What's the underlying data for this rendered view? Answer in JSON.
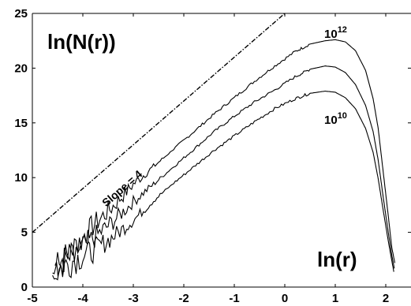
{
  "chart_data": {
    "type": "line",
    "title": "",
    "xlabel": "ln(r)",
    "ylabel": "ln(N(r))",
    "xlim": [
      -5,
      2.5
    ],
    "ylim": [
      0,
      25
    ],
    "x_ticks": [
      -5,
      -4,
      -3,
      -2,
      -1,
      0,
      1,
      2
    ],
    "y_ticks": [
      0,
      5,
      10,
      15,
      20,
      25
    ],
    "grid": false,
    "reference_line": {
      "label": "Slope = 4",
      "style": "dash-dot",
      "points": [
        [
          -5,
          5
        ],
        [
          0,
          25
        ]
      ]
    },
    "series": [
      {
        "name": "10^12",
        "label_base": "10",
        "label_exp": "12",
        "x": [
          -4.55,
          -4.2,
          -3.8,
          -3.4,
          -3.0,
          -2.6,
          -2.2,
          -1.8,
          -1.4,
          -1.0,
          -0.6,
          -0.2,
          0.2,
          0.5,
          0.8,
          1.0,
          1.2,
          1.4,
          1.6,
          1.75,
          1.85,
          1.95,
          2.05,
          2.12,
          2.18
        ],
        "y": [
          2.0,
          3.3,
          5.6,
          7.4,
          9.4,
          11.0,
          12.6,
          14.2,
          15.8,
          17.3,
          18.8,
          20.2,
          21.5,
          22.2,
          22.5,
          22.6,
          22.4,
          21.6,
          19.8,
          17.2,
          14.5,
          10.5,
          6.5,
          3.6,
          2.2
        ]
      },
      {
        "name": "",
        "x": [
          -4.6,
          -4.2,
          -3.8,
          -3.4,
          -3.0,
          -2.6,
          -2.2,
          -1.8,
          -1.4,
          -1.0,
          -0.6,
          -0.2,
          0.2,
          0.5,
          0.8,
          1.0,
          1.2,
          1.4,
          1.6,
          1.75,
          1.85,
          1.95,
          2.05,
          2.12,
          2.17
        ],
        "y": [
          1.5,
          3.0,
          4.4,
          6.0,
          7.8,
          9.4,
          11.0,
          12.6,
          14.2,
          15.6,
          16.9,
          18.0,
          19.2,
          19.9,
          20.2,
          20.1,
          19.6,
          18.5,
          16.6,
          14.2,
          11.6,
          8.2,
          5.0,
          2.9,
          1.7
        ]
      },
      {
        "name": "10^10",
        "label_base": "10",
        "label_exp": "10",
        "x": [
          -4.6,
          -4.2,
          -3.8,
          -3.4,
          -3.0,
          -2.6,
          -2.2,
          -1.8,
          -1.4,
          -1.0,
          -0.6,
          -0.2,
          0.2,
          0.5,
          0.8,
          1.0,
          1.2,
          1.4,
          1.6,
          1.75,
          1.85,
          1.95,
          2.05,
          2.12,
          2.16
        ],
        "y": [
          1.2,
          2.4,
          3.3,
          4.6,
          6.1,
          7.9,
          9.5,
          11.0,
          12.5,
          13.8,
          15.1,
          16.3,
          17.2,
          17.7,
          17.9,
          17.8,
          17.3,
          16.3,
          14.5,
          12.3,
          9.9,
          7.0,
          4.2,
          2.4,
          1.4
        ]
      }
    ]
  }
}
